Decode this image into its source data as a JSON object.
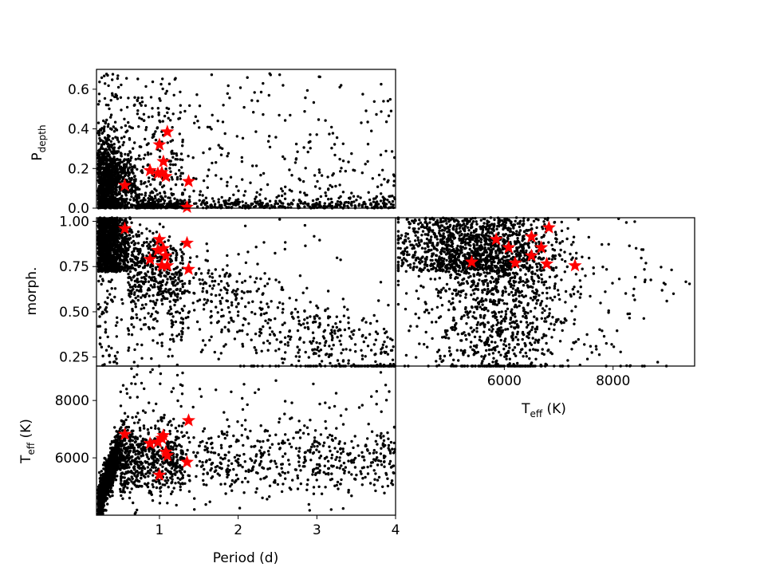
{
  "chart_data": [
    {
      "id": "top",
      "type": "scatter",
      "xlabel": "",
      "ylabel": "P",
      "ylabel_sub": "depth",
      "xlim": [
        0.2,
        4.0
      ],
      "ylim": [
        0.0,
        0.7
      ],
      "xticks": [],
      "yticks": [
        {
          "v": 0.0,
          "label": "0.0"
        },
        {
          "v": 0.2,
          "label": "0.2"
        },
        {
          "v": 0.4,
          "label": "0.4"
        },
        {
          "v": 0.6,
          "label": "0.6"
        }
      ],
      "highlight": {
        "x": [
          0.56,
          0.88,
          0.98,
          1.0,
          1.03,
          1.05,
          1.08,
          1.1,
          1.35,
          1.37
        ],
        "y": [
          0.115,
          0.19,
          0.175,
          0.32,
          0.18,
          0.235,
          0.16,
          0.385,
          0.005,
          0.135
        ]
      }
    },
    {
      "id": "mid",
      "type": "scatter",
      "xlabel": "",
      "ylabel": "morph.",
      "xlim": [
        0.2,
        4.0
      ],
      "ylim": [
        0.2,
        1.02
      ],
      "xticks": [],
      "yticks": [
        {
          "v": 0.25,
          "label": "0.25"
        },
        {
          "v": 0.5,
          "label": "0.50"
        },
        {
          "v": 0.75,
          "label": "0.75"
        },
        {
          "v": 1.0,
          "label": "1.00"
        }
      ],
      "highlight": {
        "x": [
          0.56,
          0.88,
          0.98,
          1.0,
          1.03,
          1.05,
          1.08,
          1.1,
          1.35,
          1.37
        ],
        "y": [
          0.96,
          0.79,
          0.84,
          0.9,
          0.755,
          0.85,
          0.81,
          0.755,
          0.88,
          0.735
        ]
      }
    },
    {
      "id": "right",
      "type": "scatter",
      "xlabel": "T",
      "xlabel_sub": "eff",
      "xlabel_tail": " (K)",
      "ylabel": "",
      "xlim": [
        4000,
        9500
      ],
      "ylim": [
        0.2,
        1.02
      ],
      "xticks": [
        {
          "v": 6000,
          "label": "6000"
        },
        {
          "v": 8000,
          "label": "8000"
        }
      ],
      "yticks": [],
      "highlight": {
        "x": [
          5400,
          5850,
          6080,
          6200,
          6500,
          6500,
          6680,
          6780,
          6820,
          7300
        ],
        "y": [
          0.775,
          0.9,
          0.855,
          0.77,
          0.81,
          0.915,
          0.855,
          0.765,
          0.965,
          0.755
        ]
      }
    },
    {
      "id": "bottom",
      "type": "scatter",
      "xlabel": "Period (d)",
      "ylabel": "T",
      "ylabel_sub": "eff",
      "ylabel_tail": " (K)",
      "xlim": [
        0.2,
        4.0
      ],
      "ylim": [
        4000,
        9200
      ],
      "xticks": [
        {
          "v": 1,
          "label": "1"
        },
        {
          "v": 2,
          "label": "2"
        },
        {
          "v": 3,
          "label": "3"
        },
        {
          "v": 4,
          "label": "4"
        }
      ],
      "yticks": [
        {
          "v": 6000,
          "label": "6000"
        },
        {
          "v": 8000,
          "label": "8000"
        }
      ],
      "highlight": {
        "x": [
          0.56,
          0.88,
          0.98,
          1.0,
          1.03,
          1.05,
          1.08,
          1.1,
          1.35,
          1.37
        ],
        "y": [
          6820,
          6500,
          6550,
          5400,
          6680,
          6780,
          6200,
          6080,
          5850,
          7300
        ]
      }
    }
  ],
  "colors": {
    "points": "#000000",
    "highlight": "#ff0000"
  }
}
